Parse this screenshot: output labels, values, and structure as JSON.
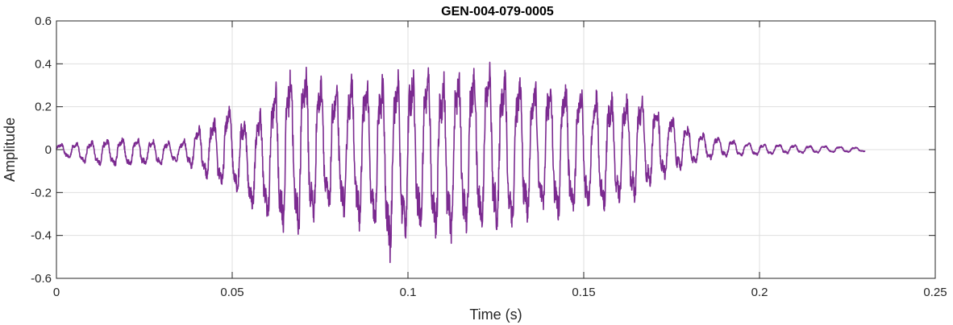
{
  "chart_data": {
    "type": "line",
    "title": "GEN-004-079-0005",
    "xlabel": "Time (s)",
    "ylabel": "Amplitude",
    "xlim": [
      0,
      0.25
    ],
    "ylim": [
      -0.6,
      0.6
    ],
    "grid": true,
    "x_ticks": [
      "0",
      "0.05",
      "0.1",
      "0.15",
      "0.2",
      "0.25"
    ],
    "y_ticks": [
      "0.6",
      "0.4",
      "0.2",
      "0",
      "-0.2",
      "-0.4",
      "-0.6"
    ],
    "series": [
      {
        "color": "#7b2a90",
        "x": [
          0,
          0.01,
          0.02,
          0.03,
          0.035,
          0.04,
          0.045,
          0.05,
          0.055,
          0.06,
          0.065,
          0.07,
          0.075,
          0.08,
          0.085,
          0.09,
          0.095,
          0.1,
          0.105,
          0.11,
          0.115,
          0.12,
          0.125,
          0.13,
          0.135,
          0.14,
          0.145,
          0.15,
          0.155,
          0.16,
          0.165,
          0.17,
          0.175,
          0.18,
          0.185,
          0.19,
          0.195,
          0.2,
          0.205,
          0.21,
          0.215,
          0.22,
          0.225,
          0.23
        ],
        "y_max": [
          0.03,
          0.05,
          0.07,
          0.05,
          0.04,
          0.12,
          0.17,
          0.25,
          0.14,
          0.3,
          0.44,
          0.47,
          0.4,
          0.34,
          0.42,
          0.38,
          0.44,
          0.44,
          0.45,
          0.42,
          0.44,
          0.45,
          0.47,
          0.4,
          0.37,
          0.38,
          0.36,
          0.34,
          0.3,
          0.3,
          0.3,
          0.24,
          0.18,
          0.12,
          0.08,
          0.06,
          0.04,
          0.03,
          0.03,
          0.025,
          0.02,
          0.02,
          0.015,
          0.01
        ],
        "y_min": [
          -0.03,
          -0.08,
          -0.09,
          -0.08,
          -0.06,
          -0.12,
          -0.2,
          -0.21,
          -0.3,
          -0.38,
          -0.44,
          -0.46,
          -0.37,
          -0.35,
          -0.42,
          -0.44,
          -0.58,
          -0.45,
          -0.45,
          -0.5,
          -0.48,
          -0.45,
          -0.45,
          -0.43,
          -0.38,
          -0.38,
          -0.38,
          -0.34,
          -0.33,
          -0.3,
          -0.28,
          -0.2,
          -0.14,
          -0.1,
          -0.06,
          -0.04,
          -0.035,
          -0.03,
          -0.025,
          -0.02,
          -0.02,
          -0.015,
          -0.015,
          -0.01
        ]
      }
    ]
  }
}
